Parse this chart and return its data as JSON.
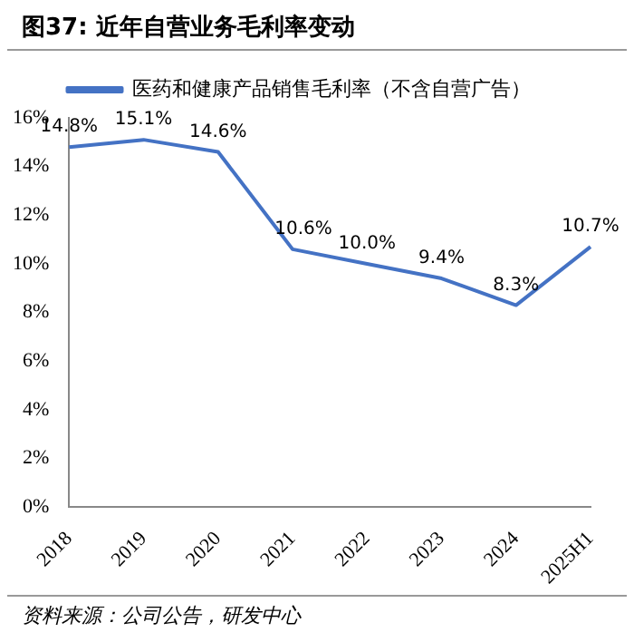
{
  "chart_data": {
    "type": "line",
    "title": "图37: 近年自营业务毛利率变动",
    "categories": [
      "2018",
      "2019",
      "2020",
      "2021",
      "2022",
      "2023",
      "2024",
      "2025H1"
    ],
    "series": [
      {
        "name": "医药和健康产品销售毛利率（不含自营广告）",
        "color": "#4472c4",
        "values": [
          14.8,
          15.1,
          14.6,
          10.6,
          10.0,
          9.4,
          8.3,
          10.7
        ]
      }
    ],
    "value_labels": [
      "14.8%",
      "15.1%",
      "14.6%",
      "10.6%",
      "10.0%",
      "9.4%",
      "8.3%",
      "10.7%"
    ],
    "ylim": [
      0,
      16
    ],
    "yticks": [
      {
        "value": 0,
        "label": "0%"
      },
      {
        "value": 2,
        "label": "2%"
      },
      {
        "value": 4,
        "label": "4%"
      },
      {
        "value": 6,
        "label": "6%"
      },
      {
        "value": 8,
        "label": "8%"
      },
      {
        "value": 10,
        "label": "10%"
      },
      {
        "value": 12,
        "label": "12%"
      },
      {
        "value": 14,
        "label": "14%"
      },
      {
        "value": 16,
        "label": "16%"
      }
    ],
    "grid": false,
    "legend": "top",
    "marker": "none",
    "line_style": "solid",
    "annotations": [
      "资料来源：公司公告，研发中心"
    ]
  }
}
